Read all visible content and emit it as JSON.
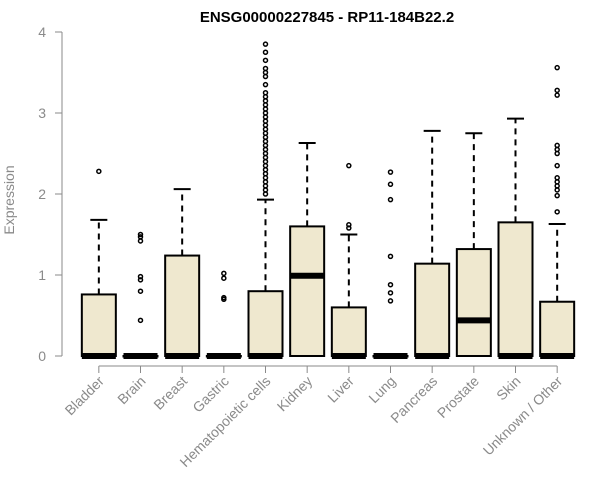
{
  "chart_data": {
    "type": "box",
    "title": "ENSG00000227845 - RP11-184B22.2",
    "ylabel": "Expression",
    "xlabel": "",
    "ylim": [
      0,
      4
    ],
    "yticks": [
      "0",
      "1",
      "2",
      "3",
      "4"
    ],
    "box_fill": "#efe8cf",
    "box_stroke": "#000000",
    "categories": [
      "Bladder",
      "Brain",
      "Breast",
      "Gastric",
      "Hematopoietic cells",
      "Kidney",
      "Liver",
      "Lung",
      "Pancreas",
      "Prostate",
      "Skin",
      "Unknown / Other"
    ],
    "boxes": [
      {
        "min": 0,
        "q1": 0,
        "median": 0,
        "q3": 0.76,
        "max": 1.68,
        "outliers": [
          2.28
        ]
      },
      {
        "min": 0,
        "q1": 0,
        "median": 0,
        "q3": 0,
        "max": 0,
        "outliers": [
          0.44,
          0.8,
          0.94,
          0.98,
          1.42,
          1.47,
          1.5
        ]
      },
      {
        "min": 0,
        "q1": 0,
        "median": 0,
        "q3": 1.24,
        "max": 2.06,
        "outliers": []
      },
      {
        "min": 0,
        "q1": 0,
        "median": 0,
        "q3": 0,
        "max": 0,
        "outliers": [
          0.7,
          0.72,
          0.96,
          1.02
        ]
      },
      {
        "min": 0,
        "q1": 0,
        "median": 0,
        "q3": 0.8,
        "max": 1.93,
        "outliers": [
          2.0,
          2.05,
          2.1,
          2.15,
          2.2,
          2.25,
          2.3,
          2.35,
          2.4,
          2.45,
          2.5,
          2.55,
          2.6,
          2.65,
          2.7,
          2.75,
          2.8,
          2.85,
          2.9,
          2.95,
          3.0,
          3.05,
          3.1,
          3.15,
          3.2,
          3.25,
          3.35,
          3.45,
          3.5,
          3.55,
          3.65,
          3.75,
          3.85
        ]
      },
      {
        "min": 0,
        "q1": 0,
        "median": 0.99,
        "q3": 1.6,
        "max": 2.63,
        "outliers": []
      },
      {
        "min": 0,
        "q1": 0,
        "median": 0,
        "q3": 0.6,
        "max": 1.5,
        "outliers": [
          1.58,
          1.62,
          2.35
        ]
      },
      {
        "min": 0,
        "q1": 0,
        "median": 0,
        "q3": 0,
        "max": 0,
        "outliers": [
          0.68,
          0.78,
          0.88,
          1.23,
          1.93,
          2.12,
          2.27
        ]
      },
      {
        "min": 0,
        "q1": 0,
        "median": 0,
        "q3": 1.14,
        "max": 2.78,
        "outliers": []
      },
      {
        "min": 0,
        "q1": 0,
        "median": 0.44,
        "q3": 1.32,
        "max": 2.75,
        "outliers": []
      },
      {
        "min": 0,
        "q1": 0,
        "median": 0,
        "q3": 1.65,
        "max": 2.93,
        "outliers": []
      },
      {
        "min": 0,
        "q1": 0,
        "median": 0,
        "q3": 0.67,
        "max": 1.63,
        "outliers": [
          1.78,
          1.98,
          2.05,
          2.1,
          2.15,
          2.2,
          2.35,
          2.5,
          2.55,
          2.6,
          3.22,
          3.28,
          3.56
        ]
      }
    ]
  }
}
